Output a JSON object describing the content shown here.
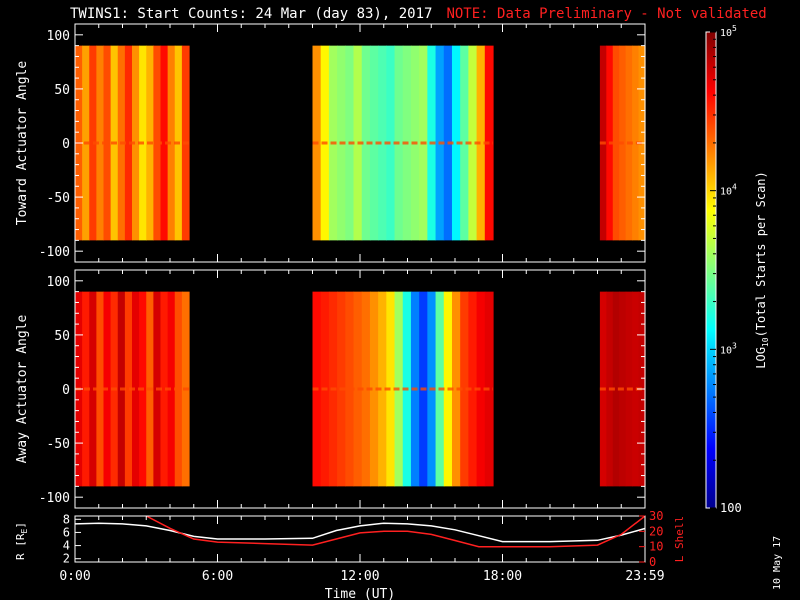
{
  "header": {
    "title": "TWINS1: Start Counts: 24 Mar (day  83), 2017",
    "note": "NOTE: Data Preliminary - Not validated"
  },
  "stamp": "10 May 17",
  "colors": {
    "background": "#000000",
    "axis": "#ffffff",
    "note": "#ff2020",
    "lshell": "#ff2020",
    "radius": "#ffffff"
  },
  "chart_data": [
    {
      "type": "heatmap",
      "ylabel": "Toward Actuator Angle",
      "ylim": [
        -110,
        110
      ],
      "y_range_data": [
        -90,
        90
      ],
      "yticks": [
        -100,
        -50,
        0,
        50,
        100
      ],
      "xlim_hours": [
        0,
        24
      ],
      "time_blocks": [
        {
          "start_h": 0.0,
          "end_h": 4.8,
          "log_levels": [
            4.35,
            4.15,
            4.45,
            4.25,
            4.4,
            4.05,
            4.3,
            4.5,
            4.2,
            3.95,
            4.1,
            4.4,
            4.6,
            4.25,
            4.05,
            4.45
          ]
        },
        {
          "start_h": 10.0,
          "end_h": 17.6,
          "log_levels": [
            4.2,
            3.9,
            3.6,
            3.55,
            3.5,
            3.65,
            3.45,
            3.4,
            3.35,
            3.3,
            3.45,
            3.5,
            3.55,
            3.6,
            3.2,
            2.85,
            2.7,
            3.1,
            3.4,
            3.7,
            4.1,
            4.6
          ]
        },
        {
          "start_h": 22.1,
          "end_h": 24.0,
          "log_levels": [
            4.8,
            4.6,
            4.4,
            4.35,
            4.3,
            4.25,
            4.2
          ]
        }
      ]
    },
    {
      "type": "heatmap",
      "ylabel": "Away Actuator Angle",
      "ylim": [
        -110,
        110
      ],
      "y_range_data": [
        -90,
        90
      ],
      "yticks": [
        -100,
        -50,
        0,
        50,
        100
      ],
      "xlim_hours": [
        0,
        24
      ],
      "time_blocks": [
        {
          "start_h": 0.0,
          "end_h": 4.8,
          "log_levels": [
            4.7,
            4.55,
            4.75,
            4.4,
            4.65,
            4.5,
            4.8,
            4.45,
            4.7,
            4.6,
            4.35,
            4.75,
            4.55,
            4.65,
            4.4,
            4.3
          ]
        },
        {
          "start_h": 10.0,
          "end_h": 17.6,
          "log_levels": [
            4.6,
            4.55,
            4.5,
            4.45,
            4.4,
            4.35,
            4.3,
            4.2,
            4.1,
            3.95,
            3.6,
            3.2,
            2.75,
            2.55,
            2.8,
            3.4,
            3.9,
            4.2,
            4.45,
            4.55,
            4.65,
            4.7
          ]
        },
        {
          "start_h": 22.1,
          "end_h": 24.0,
          "log_levels": [
            4.75,
            4.8,
            4.85,
            4.82,
            4.8,
            4.78,
            4.8
          ]
        }
      ]
    },
    {
      "type": "line",
      "xlabel": "Time (UT)",
      "xticks": [
        "0:00",
        "6:00",
        "12:00",
        "18:00",
        "23:59"
      ],
      "xtick_hours": [
        0,
        6,
        12,
        18,
        24
      ],
      "ylabel": "R [R",
      "ylabel_sub": "E",
      "ylabel_end": "]",
      "ylim": [
        1.5,
        8.5
      ],
      "yticks": [
        2,
        4,
        6,
        8
      ],
      "ylabel_right": "L Shell",
      "ylim_right": [
        0,
        30
      ],
      "yticks_right": [
        0,
        10,
        20,
        30
      ],
      "series": [
        {
          "axis": "left",
          "color": "#ffffff",
          "x": [
            0,
            1,
            2,
            3,
            4,
            5,
            6,
            8,
            10,
            11,
            12,
            13,
            14,
            15,
            16,
            17,
            18,
            20,
            22,
            23,
            24
          ],
          "y": [
            7.3,
            7.4,
            7.3,
            7.0,
            6.3,
            5.4,
            5.0,
            5.0,
            5.1,
            6.3,
            7.0,
            7.4,
            7.3,
            7.0,
            6.4,
            5.5,
            4.6,
            4.6,
            4.8,
            5.6,
            6.6
          ]
        },
        {
          "axis": "right",
          "color": "#ff2020",
          "x": [
            3.0,
            4,
            5,
            6,
            8,
            10,
            11,
            12,
            13,
            14,
            15,
            16,
            17,
            18,
            20,
            22,
            23,
            24
          ],
          "y": [
            30,
            22,
            15,
            13,
            12,
            11,
            15,
            19,
            20,
            20,
            18,
            14,
            10,
            10,
            10,
            11,
            18,
            30
          ]
        }
      ]
    }
  ],
  "colorbar": {
    "min_log": 2,
    "max_log": 5,
    "label_main": "LOG",
    "label_sub": "10",
    "label_rest": "(Total Starts per Scan)",
    "labels": [
      {
        "log": 5,
        "base": "10",
        "exp": "5"
      },
      {
        "log": 4,
        "base": "10",
        "exp": "4"
      },
      {
        "log": 3,
        "base": "10",
        "exp": "3"
      },
      {
        "log": 2,
        "base": "100",
        "exp": ""
      }
    ]
  }
}
